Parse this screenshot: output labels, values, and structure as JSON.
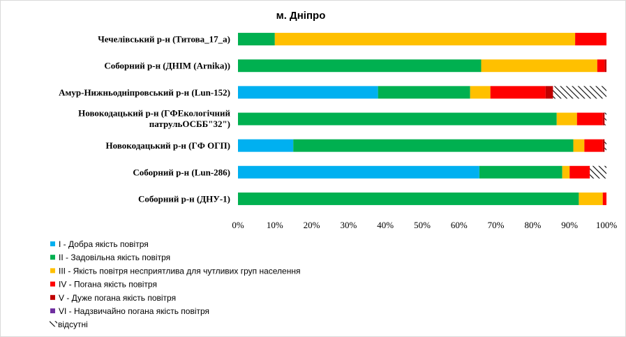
{
  "chart_data": {
    "type": "bar",
    "orientation": "horizontal",
    "stacked": true,
    "title": "м. Дніпро",
    "categories": [
      "Чечелівський р-н (Титова_17_а)",
      "Соборний  р-н (ДНІМ (Arnika))",
      "Амур-Нижньодніпровський  р-н (Lun-152)",
      "Новокодацький р-н (ГФЕкологічний патрульОСББ\"32\")",
      "Новокодацький р-н (ГФ ОГП)",
      "Соборний  р-н (Lun-286)",
      "Соборний  р-н (ДНУ-1)"
    ],
    "series": [
      {
        "name": "I - Добра якість  повітря",
        "color": "#00b0f0",
        "pattern": false,
        "values": [
          0,
          0,
          38,
          0,
          15,
          65.5,
          0
        ]
      },
      {
        "name": "II - Задовільна якість  повітря",
        "color": "#00b050",
        "pattern": false,
        "values": [
          10,
          66,
          25,
          86.5,
          76,
          22.5,
          92.5
        ]
      },
      {
        "name": "III - Якість повітря несприятлива для чутливих груп населення",
        "color": "#ffc000",
        "pattern": false,
        "values": [
          81.5,
          31.5,
          5.5,
          5.5,
          3,
          2,
          6.5
        ]
      },
      {
        "name": "IV - Погана якість  повітря",
        "color": "#ff0000",
        "pattern": false,
        "values": [
          8.5,
          2,
          15,
          7,
          5,
          5.5,
          1
        ]
      },
      {
        "name": "V - Дуже погана якість  повітря",
        "color": "#c00000",
        "pattern": false,
        "values": [
          0,
          0.5,
          2,
          0.5,
          0.5,
          0,
          0
        ]
      },
      {
        "name": "VI - Надзвичайно погана якість  повітря",
        "color": "#7030a0",
        "pattern": false,
        "values": [
          0,
          0,
          0,
          0,
          0,
          0,
          0
        ]
      },
      {
        "name": "відсутні",
        "color": "#ffffff",
        "pattern": true,
        "values": [
          0,
          0,
          14.5,
          0.5,
          0.5,
          4.5,
          0
        ]
      }
    ],
    "x_axis": {
      "min": 0,
      "max": 100,
      "step": 10,
      "tick_labels": [
        "0%",
        "10%",
        "20%",
        "30%",
        "40%",
        "50%",
        "60%",
        "70%",
        "80%",
        "90%",
        "100%"
      ]
    },
    "grid": false,
    "legend_position": "bottom-left"
  }
}
